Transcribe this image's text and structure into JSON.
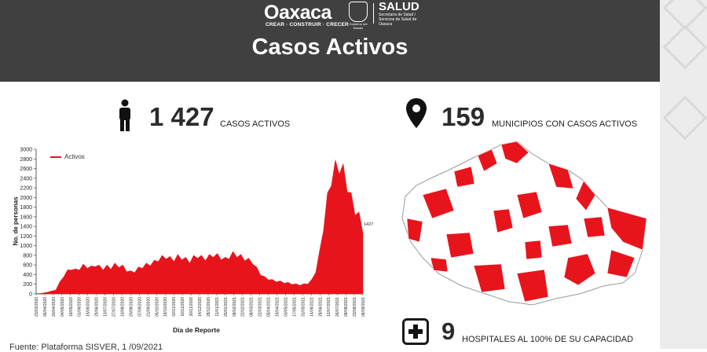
{
  "header": {
    "logo_text": "Oaxaca",
    "logo_tagline": "CREAR · CONSTRUIR · CRECER",
    "seal_caption": "Gobierno del Estado",
    "salud_title": "SALUD",
    "salud_sub": "Secretaría de Salud / Servicios de Salud de Oaxaca",
    "title": "Casos Activos"
  },
  "stats": {
    "active_value": "1 427",
    "active_label": "CASOS ACTIVOS",
    "municipalities_value": "159",
    "municipalities_label": "MUNICIPIOS CON CASOS ACTIVOS",
    "hospitals_value": "9",
    "hospitals_label": "HOSPITALES AL 100% DE SU CAPACIDAD"
  },
  "source": "Fuente: Plataforma SISVER, 1 /09/2021",
  "chart_data": {
    "type": "area",
    "title": "",
    "xlabel": "Día de Reporte",
    "ylabel": "No. de personas",
    "ylim": [
      0,
      3000
    ],
    "yticks": [
      0,
      200,
      400,
      600,
      800,
      1000,
      1200,
      1400,
      1600,
      1800,
      2000,
      2200,
      2400,
      2600,
      2800,
      3000
    ],
    "legend": "top-left",
    "series": [
      {
        "name": "Activos",
        "color": "#e8141c"
      }
    ],
    "last_value_label": "1427",
    "x_tick_labels": [
      "23/03/2020",
      "06/04/2020",
      "20/04/2020",
      "04/05/2020",
      "18/05/2020",
      "01/06/2020",
      "15/06/2020",
      "29/06/2020",
      "13/07/2020",
      "27/07/2020",
      "10/08/2020",
      "24/08/2020",
      "07/09/2020",
      "21/09/2020",
      "05/10/2020",
      "19/10/2020",
      "02/11/2020",
      "16/11/2020",
      "30/11/2020",
      "14/12/2020",
      "28/12/2020",
      "11/01/2021",
      "25/01/2021",
      "08/02/2021",
      "22/02/2021",
      "08/03/2021",
      "22/03/2021",
      "05/04/2021",
      "19/04/2021",
      "03/05/2021",
      "17/05/2021",
      "31/05/2021",
      "14/06/2021",
      "28/06/2021",
      "12/07/2021",
      "26/07/2021",
      "09/08/2021",
      "23/08/2021",
      "06/09/2021"
    ],
    "values": [
      5,
      10,
      20,
      40,
      60,
      90,
      250,
      400,
      500,
      560,
      520,
      560,
      620,
      600,
      580,
      640,
      600,
      560,
      600,
      580,
      640,
      620,
      600,
      520,
      480,
      500,
      560,
      600,
      640,
      660,
      700,
      760,
      800,
      820,
      780,
      760,
      820,
      800,
      760,
      720,
      800,
      840,
      800,
      780,
      820,
      860,
      840,
      800,
      760,
      820,
      880,
      860,
      820,
      780,
      740,
      700,
      560,
      440,
      360,
      330,
      300,
      280,
      270,
      250,
      240,
      220,
      210,
      200,
      210,
      230,
      300,
      500,
      900,
      1500,
      2100,
      2550,
      2780,
      2820,
      2700,
      2400,
      2100,
      1850,
      1700,
      1427
    ]
  }
}
